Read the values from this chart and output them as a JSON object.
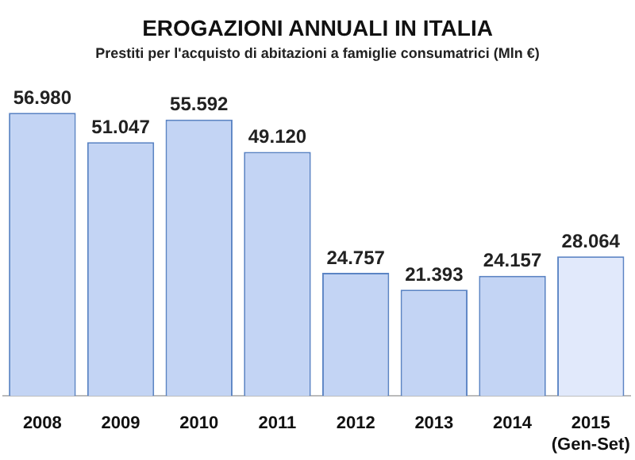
{
  "chart_data": {
    "type": "bar",
    "title": "EROGAZIONI ANNUALI IN ITALIA",
    "subtitle": "Prestiti per l'acquisto di abitazioni a famiglie consumatrici (Mln €)",
    "categories": [
      "2008",
      "2009",
      "2010",
      "2011",
      "2012",
      "2013",
      "2014",
      "2015 (Gen-Set)"
    ],
    "values": [
      56980,
      51047,
      55592,
      49120,
      24757,
      21393,
      24157,
      28064
    ],
    "value_labels": [
      "56.980",
      "51.047",
      "55.592",
      "49.120",
      "24.757",
      "21.393",
      "24.157",
      "28.064"
    ],
    "colors": [
      "#c3d4f4",
      "#c3d4f4",
      "#c3d4f4",
      "#c3d4f4",
      "#c3d4f4",
      "#c3d4f4",
      "#c3d4f4",
      "#e1e9fb"
    ],
    "grid": false,
    "legend": false
  }
}
